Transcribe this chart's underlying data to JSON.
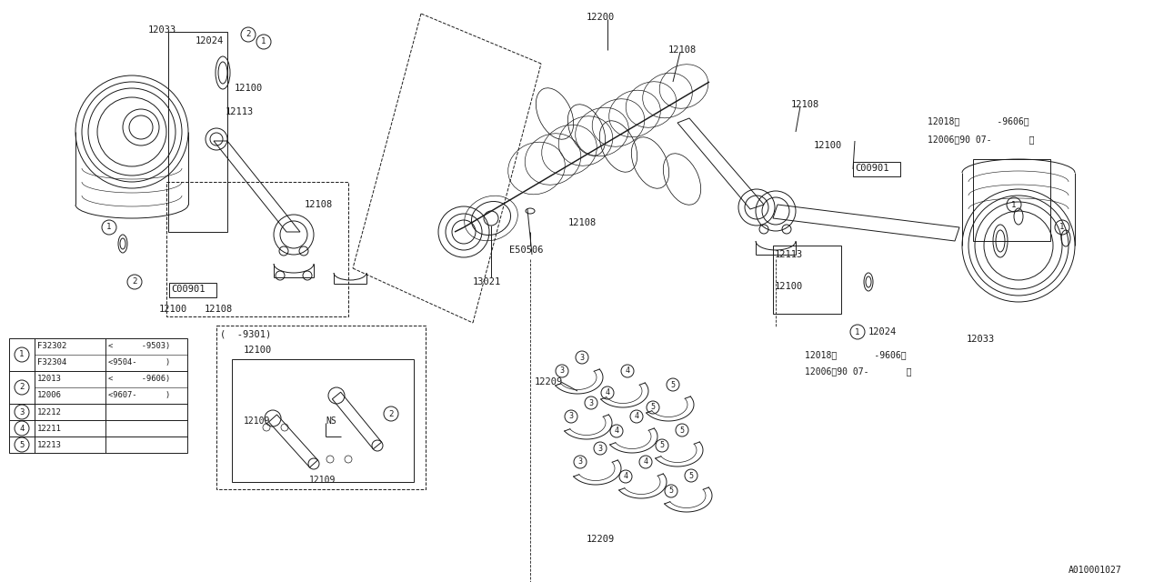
{
  "bg_color": "#ffffff",
  "line_color": "#1a1a1a",
  "diagram_id": "A010001027",
  "legend_rows": [
    {
      "num": "1",
      "sub": [
        {
          "code": "F32302",
          "note": "<      -9503)"
        },
        {
          "code": "F32304",
          "note": "<9504-      )"
        }
      ]
    },
    {
      "num": "2",
      "sub": [
        {
          "code": "12013",
          "note": "<      -9606)"
        },
        {
          "code": "12006",
          "note": "<9607-      )"
        }
      ]
    },
    {
      "num": "3",
      "sub": [
        {
          "code": "12212",
          "note": ""
        }
      ]
    },
    {
      "num": "4",
      "sub": [
        {
          "code": "12211",
          "note": ""
        }
      ]
    },
    {
      "num": "5",
      "sub": [
        {
          "code": "12213",
          "note": ""
        }
      ]
    }
  ]
}
